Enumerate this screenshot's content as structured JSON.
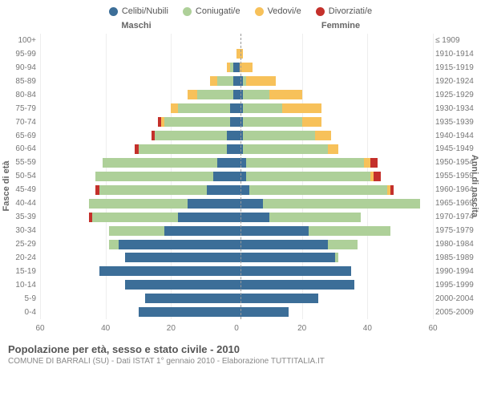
{
  "legend": [
    {
      "label": "Celibi/Nubili",
      "color": "#3c6e98"
    },
    {
      "label": "Coniugati/e",
      "color": "#aed099"
    },
    {
      "label": "Vedovi/e",
      "color": "#f7c15a"
    },
    {
      "label": "Divorziati/e",
      "color": "#c4302b"
    }
  ],
  "headers": {
    "male": "Maschi",
    "female": "Femmine"
  },
  "axis_labels": {
    "left": "Fasce di età",
    "right": "Anni di nascita"
  },
  "colors": {
    "celibi": "#3c6e98",
    "coniugati": "#aed099",
    "vedovi": "#f7c15a",
    "divorziati": "#c4302b",
    "grid": "#eeeeee",
    "midline": "#999999",
    "background": "#ffffff"
  },
  "x": {
    "max": 60,
    "ticks": [
      60,
      40,
      20,
      0,
      20,
      40,
      60
    ]
  },
  "title": "Popolazione per età, sesso e stato civile - 2010",
  "subtitle": "COMUNE DI BARRALI (SU) - Dati ISTAT 1° gennaio 2010 - Elaborazione TUTTITALIA.IT",
  "rows": [
    {
      "age": "100+",
      "birth": "≤ 1909",
      "m": {
        "c": 0,
        "g": 0,
        "v": 0,
        "d": 0
      },
      "f": {
        "c": 0,
        "g": 0,
        "v": 0,
        "d": 0
      }
    },
    {
      "age": "95-99",
      "birth": "1910-1914",
      "m": {
        "c": 0,
        "g": 0,
        "v": 0,
        "d": 0
      },
      "f": {
        "c": 0,
        "g": 0,
        "v": 2,
        "d": 0
      }
    },
    {
      "age": "90-94",
      "birth": "1915-1919",
      "m": {
        "c": 1,
        "g": 1,
        "v": 1,
        "d": 0
      },
      "f": {
        "c": 1,
        "g": 0,
        "v": 4,
        "d": 0
      }
    },
    {
      "age": "85-89",
      "birth": "1920-1924",
      "m": {
        "c": 1,
        "g": 5,
        "v": 2,
        "d": 0
      },
      "f": {
        "c": 2,
        "g": 1,
        "v": 9,
        "d": 0
      }
    },
    {
      "age": "80-84",
      "birth": "1925-1929",
      "m": {
        "c": 1,
        "g": 11,
        "v": 3,
        "d": 0
      },
      "f": {
        "c": 2,
        "g": 8,
        "v": 10,
        "d": 0
      }
    },
    {
      "age": "75-79",
      "birth": "1930-1934",
      "m": {
        "c": 2,
        "g": 16,
        "v": 2,
        "d": 0
      },
      "f": {
        "c": 2,
        "g": 12,
        "v": 12,
        "d": 0
      }
    },
    {
      "age": "70-74",
      "birth": "1935-1939",
      "m": {
        "c": 2,
        "g": 20,
        "v": 1,
        "d": 1
      },
      "f": {
        "c": 2,
        "g": 18,
        "v": 6,
        "d": 0
      }
    },
    {
      "age": "65-69",
      "birth": "1940-1944",
      "m": {
        "c": 3,
        "g": 22,
        "v": 0,
        "d": 1
      },
      "f": {
        "c": 2,
        "g": 22,
        "v": 5,
        "d": 0
      }
    },
    {
      "age": "60-64",
      "birth": "1945-1949",
      "m": {
        "c": 3,
        "g": 27,
        "v": 0,
        "d": 1
      },
      "f": {
        "c": 2,
        "g": 26,
        "v": 3,
        "d": 0
      }
    },
    {
      "age": "55-59",
      "birth": "1950-1954",
      "m": {
        "c": 6,
        "g": 35,
        "v": 0,
        "d": 0
      },
      "f": {
        "c": 3,
        "g": 36,
        "v": 2,
        "d": 2
      }
    },
    {
      "age": "50-54",
      "birth": "1955-1959",
      "m": {
        "c": 7,
        "g": 36,
        "v": 0,
        "d": 0
      },
      "f": {
        "c": 3,
        "g": 38,
        "v": 1,
        "d": 2
      }
    },
    {
      "age": "45-49",
      "birth": "1960-1964",
      "m": {
        "c": 9,
        "g": 33,
        "v": 0,
        "d": 1
      },
      "f": {
        "c": 4,
        "g": 42,
        "v": 1,
        "d": 1
      }
    },
    {
      "age": "40-44",
      "birth": "1965-1969",
      "m": {
        "c": 15,
        "g": 30,
        "v": 0,
        "d": 0
      },
      "f": {
        "c": 8,
        "g": 48,
        "v": 0,
        "d": 0
      }
    },
    {
      "age": "35-39",
      "birth": "1970-1974",
      "m": {
        "c": 18,
        "g": 26,
        "v": 0,
        "d": 1
      },
      "f": {
        "c": 10,
        "g": 28,
        "v": 0,
        "d": 0
      }
    },
    {
      "age": "30-34",
      "birth": "1975-1979",
      "m": {
        "c": 22,
        "g": 17,
        "v": 0,
        "d": 0
      },
      "f": {
        "c": 22,
        "g": 25,
        "v": 0,
        "d": 0
      }
    },
    {
      "age": "25-29",
      "birth": "1980-1984",
      "m": {
        "c": 36,
        "g": 3,
        "v": 0,
        "d": 0
      },
      "f": {
        "c": 28,
        "g": 9,
        "v": 0,
        "d": 0
      }
    },
    {
      "age": "20-24",
      "birth": "1985-1989",
      "m": {
        "c": 34,
        "g": 0,
        "v": 0,
        "d": 0
      },
      "f": {
        "c": 30,
        "g": 1,
        "v": 0,
        "d": 0
      }
    },
    {
      "age": "15-19",
      "birth": "1990-1994",
      "m": {
        "c": 42,
        "g": 0,
        "v": 0,
        "d": 0
      },
      "f": {
        "c": 35,
        "g": 0,
        "v": 0,
        "d": 0
      }
    },
    {
      "age": "10-14",
      "birth": "1995-1999",
      "m": {
        "c": 34,
        "g": 0,
        "v": 0,
        "d": 0
      },
      "f": {
        "c": 36,
        "g": 0,
        "v": 0,
        "d": 0
      }
    },
    {
      "age": "5-9",
      "birth": "2000-2004",
      "m": {
        "c": 28,
        "g": 0,
        "v": 0,
        "d": 0
      },
      "f": {
        "c": 25,
        "g": 0,
        "v": 0,
        "d": 0
      }
    },
    {
      "age": "0-4",
      "birth": "2005-2009",
      "m": {
        "c": 30,
        "g": 0,
        "v": 0,
        "d": 0
      },
      "f": {
        "c": 16,
        "g": 0,
        "v": 0,
        "d": 0
      }
    }
  ]
}
